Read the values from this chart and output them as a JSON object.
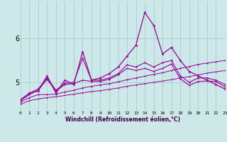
{
  "x": [
    0,
    1,
    2,
    3,
    4,
    5,
    6,
    7,
    8,
    9,
    10,
    11,
    12,
    13,
    14,
    15,
    16,
    17,
    18,
    19,
    20,
    21,
    22,
    23
  ],
  "line_volatile": [
    4.6,
    4.75,
    4.8,
    5.15,
    4.75,
    5.05,
    4.95,
    5.7,
    5.05,
    5.1,
    5.2,
    5.35,
    5.6,
    5.85,
    6.6,
    6.3,
    5.65,
    5.8,
    5.5,
    5.25,
    5.15,
    5.05,
    4.95,
    4.85
  ],
  "line_mid1": [
    4.6,
    4.75,
    4.85,
    5.1,
    4.82,
    4.98,
    5.0,
    5.55,
    5.05,
    5.05,
    5.1,
    5.2,
    5.4,
    5.35,
    5.45,
    5.35,
    5.45,
    5.5,
    5.15,
    5.0,
    5.1,
    5.1,
    5.05,
    4.95
  ],
  "line_mid2": [
    4.58,
    4.72,
    4.82,
    5.07,
    4.8,
    4.95,
    4.97,
    5.05,
    5.02,
    5.02,
    5.07,
    5.17,
    5.32,
    5.27,
    5.32,
    5.25,
    5.32,
    5.42,
    5.08,
    4.93,
    5.02,
    5.03,
    5.02,
    4.9
  ],
  "line_flat1": [
    4.55,
    4.65,
    4.72,
    4.72,
    4.73,
    4.78,
    4.82,
    4.87,
    4.91,
    4.94,
    4.97,
    5.01,
    5.06,
    5.1,
    5.14,
    5.18,
    5.22,
    5.27,
    5.32,
    5.36,
    5.41,
    5.44,
    5.47,
    5.5
  ],
  "line_flat2": [
    4.5,
    4.58,
    4.62,
    4.65,
    4.67,
    4.7,
    4.73,
    4.76,
    4.79,
    4.81,
    4.84,
    4.87,
    4.91,
    4.94,
    4.97,
    5.0,
    5.03,
    5.06,
    5.1,
    5.13,
    5.17,
    5.21,
    5.24,
    5.27
  ],
  "xlim": [
    0,
    23
  ],
  "ylim": [
    4.35,
    6.85
  ],
  "yticks": [
    5,
    6
  ],
  "xticks": [
    0,
    1,
    2,
    3,
    4,
    5,
    6,
    7,
    8,
    9,
    10,
    11,
    12,
    13,
    14,
    15,
    16,
    17,
    18,
    19,
    20,
    21,
    22,
    23
  ],
  "xlabel": "Windchill (Refroidissement éolien,°C)",
  "color": "#990099",
  "bg_color": "#cce8e8",
  "grid_color": "#aacccc"
}
